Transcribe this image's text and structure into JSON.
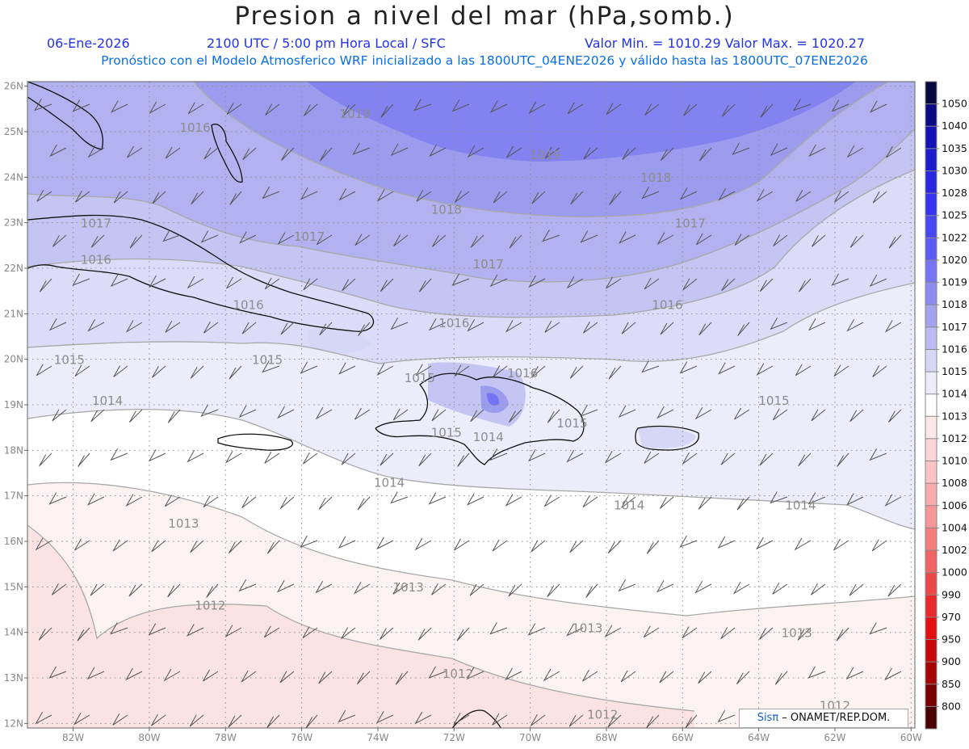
{
  "header": {
    "title": "Presion a nivel del mar (hPa,somb.)",
    "date": "06-Ene-2026",
    "time": "2100 UTC / 5:00 pm Hora Local / SFC",
    "min_max": "Valor Min. = 1010.29  Valor Max. = 1020.27",
    "model_info": "Pronóstico con el Modelo Atmosferico WRF inicializado a las 1800UTC_04ENE2026 y válido hasta las  1800UTC_07ENE2026"
  },
  "map": {
    "lon_range": [
      -83.2,
      -59.9
    ],
    "lat_range": [
      11.9,
      26.1
    ],
    "lat_ticks": [
      "26N",
      "25N",
      "24N",
      "23N",
      "22N",
      "21N",
      "20N",
      "19N",
      "18N",
      "17N",
      "16N",
      "15N",
      "14N",
      "13N",
      "12N"
    ],
    "lon_ticks": [
      "82W",
      "80W",
      "78W",
      "76W",
      "74W",
      "72W",
      "70W",
      "68W",
      "66W",
      "64W",
      "62W",
      "60W"
    ],
    "contour_labels": [
      {
        "text": "1016",
        "lon": -78.8,
        "lat": 25.0
      },
      {
        "text": "1019",
        "lon": -74.6,
        "lat": 25.3
      },
      {
        "text": "1019",
        "lon": -69.6,
        "lat": 24.4
      },
      {
        "text": "1018",
        "lon": -72.2,
        "lat": 23.2
      },
      {
        "text": "1018",
        "lon": -66.7,
        "lat": 23.9
      },
      {
        "text": "1017",
        "lon": -81.4,
        "lat": 22.9
      },
      {
        "text": "1017",
        "lon": -75.8,
        "lat": 22.6
      },
      {
        "text": "1017",
        "lon": -71.1,
        "lat": 22.0
      },
      {
        "text": "1017",
        "lon": -65.8,
        "lat": 22.9
      },
      {
        "text": "1016",
        "lon": -81.4,
        "lat": 22.1
      },
      {
        "text": "1016",
        "lon": -77.4,
        "lat": 21.1
      },
      {
        "text": "1016",
        "lon": -72.0,
        "lat": 20.7
      },
      {
        "text": "1016",
        "lon": -66.4,
        "lat": 21.1
      },
      {
        "text": "1016",
        "lon": -70.2,
        "lat": 19.6
      },
      {
        "text": "1015",
        "lon": -82.1,
        "lat": 19.9
      },
      {
        "text": "1015",
        "lon": -76.9,
        "lat": 19.9
      },
      {
        "text": "1015",
        "lon": -72.9,
        "lat": 19.5
      },
      {
        "text": "1015",
        "lon": -72.2,
        "lat": 18.3
      },
      {
        "text": "1015",
        "lon": -68.9,
        "lat": 18.5
      },
      {
        "text": "1015",
        "lon": -63.6,
        "lat": 19.0
      },
      {
        "text": "1014",
        "lon": -81.1,
        "lat": 19.0
      },
      {
        "text": "1014",
        "lon": -71.1,
        "lat": 18.2
      },
      {
        "text": "1014",
        "lon": -73.7,
        "lat": 17.2
      },
      {
        "text": "1014",
        "lon": -67.4,
        "lat": 16.7
      },
      {
        "text": "1014",
        "lon": -62.9,
        "lat": 16.7
      },
      {
        "text": "1013",
        "lon": -79.1,
        "lat": 16.3
      },
      {
        "text": "1013",
        "lon": -73.2,
        "lat": 14.9
      },
      {
        "text": "1013",
        "lon": -68.5,
        "lat": 14.0
      },
      {
        "text": "1013",
        "lon": -63.0,
        "lat": 13.9
      },
      {
        "text": "1012",
        "lon": -78.4,
        "lat": 14.5
      },
      {
        "text": "1012",
        "lon": -71.9,
        "lat": 13.0
      },
      {
        "text": "1012",
        "lon": -68.1,
        "lat": 12.1
      },
      {
        "text": "1012",
        "lon": -62.0,
        "lat": 12.3
      }
    ]
  },
  "colorbar": {
    "labels": [
      "1050",
      "1040",
      "1035",
      "1030",
      "1028",
      "1025",
      "1022",
      "1020",
      "1019",
      "1018",
      "1017",
      "1016",
      "1015",
      "1014",
      "1013",
      "1012",
      "1010",
      "1008",
      "1006",
      "1004",
      "1002",
      "1000",
      "990",
      "970",
      "950",
      "900",
      "850",
      "800"
    ],
    "colors": [
      "#080840",
      "#0a0a85",
      "#1212b5",
      "#1c1ccd",
      "#2828e0",
      "#3535f0",
      "#4747f4",
      "#5c5cf5",
      "#7474f4",
      "#8c8cf0",
      "#a4a4ee",
      "#bcbcf2",
      "#d6d6f7",
      "#ececfb",
      "#ffffff",
      "#fde8e8",
      "#fcd6d6",
      "#fbc4c4",
      "#f9aeae",
      "#f79696",
      "#f47e7e",
      "#f06464",
      "#ec4848",
      "#e82a2a",
      "#e41010",
      "#c80808",
      "#a40404",
      "#780000",
      "#4a0000"
    ]
  },
  "credit": {
    "brand": "Sisπ",
    "text": " – ONAMET/REP.DOM."
  }
}
